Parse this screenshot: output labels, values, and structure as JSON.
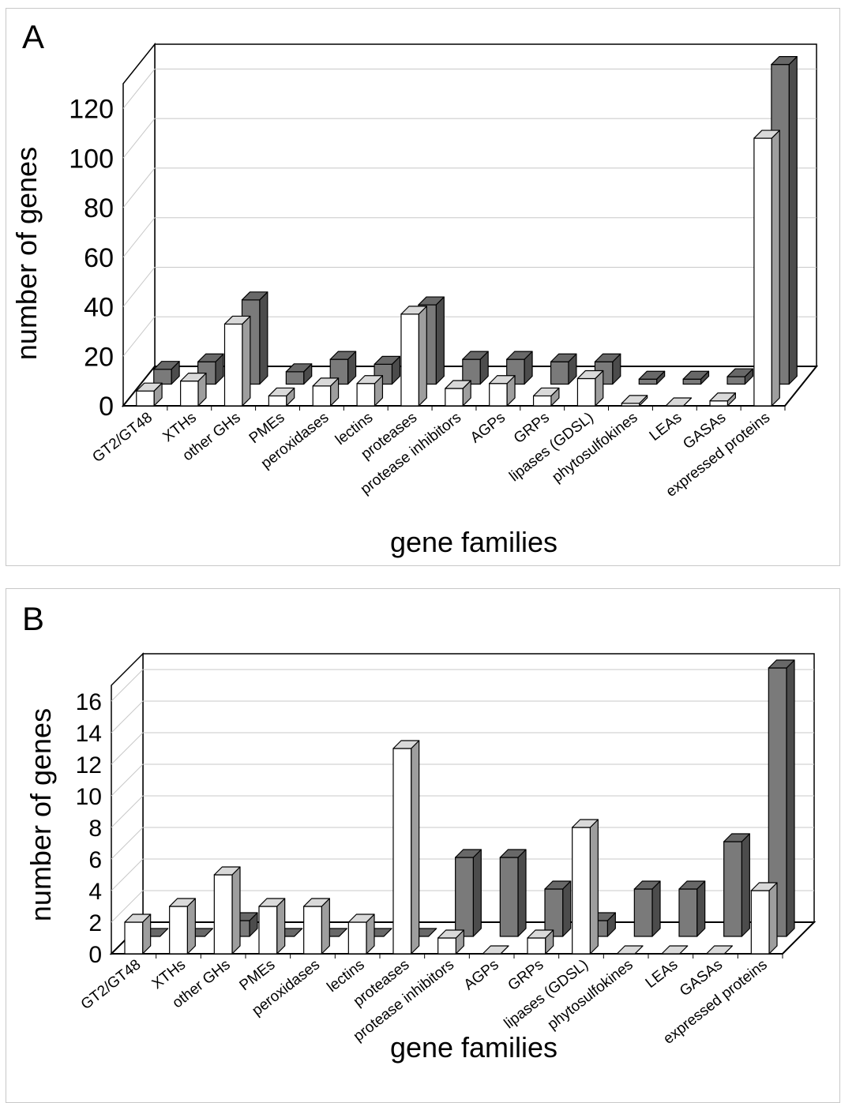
{
  "colors": {
    "series_1": "#ffffff",
    "series_2": "#7a7a7a",
    "gridline": "#c8c8c8",
    "axis": "#000000"
  },
  "chart_data": [
    {
      "panel_label": "A",
      "type": "bar",
      "style": "3d-clustered",
      "xlabel": "gene families",
      "ylabel": "number of genes",
      "ylim": [
        0,
        130
      ],
      "yticks": [
        "0",
        "20",
        "40",
        "60",
        "80",
        "100",
        "120"
      ],
      "grid": true,
      "categories": [
        "GT2/GT48",
        "XTHs",
        "other GHs",
        "PMEs",
        "peroxidases",
        "lectins",
        "proteases",
        "protease inhibitors",
        "AGPs",
        "GRPs",
        "lipases (GDSL)",
        "phytosulfokines",
        "LEAs",
        "GASAs",
        "expressed proteins"
      ],
      "series": [
        {
          "color": "#ffffff",
          "values": [
            6,
            10,
            33,
            4,
            8,
            9,
            37,
            7,
            9,
            4,
            11,
            1,
            0,
            2,
            108
          ]
        },
        {
          "color": "#7a7a7a",
          "values": [
            6,
            9,
            34,
            5,
            10,
            8,
            32,
            10,
            10,
            9,
            9,
            2,
            2,
            3,
            129
          ]
        }
      ]
    },
    {
      "panel_label": "B",
      "type": "bar",
      "style": "3d-clustered",
      "xlabel": "gene families",
      "ylabel": "number of genes",
      "ylim": [
        0,
        17
      ],
      "yticks": [
        "0",
        "2",
        "4",
        "6",
        "8",
        "10",
        "12",
        "14",
        "16"
      ],
      "grid": true,
      "categories": [
        "GT2/GT48",
        "XTHs",
        "other GHs",
        "PMEs",
        "peroxidases",
        "lectins",
        "proteases",
        "protease inhibitors",
        "AGPs",
        "GRPs",
        "lipases (GDSL)",
        "phytosulfokines",
        "LEAs",
        "GASAs",
        "expressed proteins"
      ],
      "series": [
        {
          "color": "#ffffff",
          "values": [
            2,
            3,
            5,
            3,
            3,
            2,
            13,
            1,
            0,
            1,
            8,
            0,
            0,
            0,
            4
          ]
        },
        {
          "color": "#7a7a7a",
          "values": [
            0,
            0,
            1,
            0,
            0,
            0,
            0,
            5,
            5,
            3,
            1,
            3,
            3,
            6,
            17
          ]
        }
      ]
    }
  ]
}
